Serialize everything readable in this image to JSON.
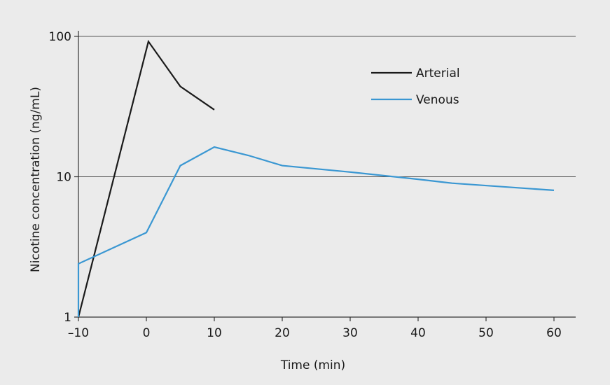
{
  "chart_data": {
    "type": "line",
    "title": "",
    "xlabel": "Time (min)",
    "ylabel": "Nicotine concentration (ng/mL)",
    "xlim": [
      -10,
      64
    ],
    "ylim": [
      1,
      120
    ],
    "yscale": "log",
    "x_ticks": [
      -10,
      0,
      10,
      20,
      30,
      40,
      50,
      60
    ],
    "x_tick_labels": [
      "–10",
      "0",
      "10",
      "20",
      "30",
      "40",
      "50",
      "60"
    ],
    "y_ticks": [
      1,
      10,
      100
    ],
    "y_tick_labels": [
      "1",
      "10",
      "100"
    ],
    "grid": "horizontal at major y ticks",
    "legend_position": "top-right",
    "series": [
      {
        "name": "Arterial",
        "color": "#1a1a1a",
        "x": [
          -10,
          0.3,
          5,
          10
        ],
        "y": [
          1.0,
          92,
          44,
          30
        ]
      },
      {
        "name": "Venous",
        "color": "#3a97d2",
        "x": [
          -10,
          -10,
          0,
          5,
          10,
          15,
          20,
          30,
          40,
          45,
          60
        ],
        "y": [
          1.0,
          2.4,
          4.0,
          12.0,
          16.3,
          14.2,
          12.0,
          10.8,
          9.6,
          9.0,
          8.0
        ]
      }
    ]
  }
}
